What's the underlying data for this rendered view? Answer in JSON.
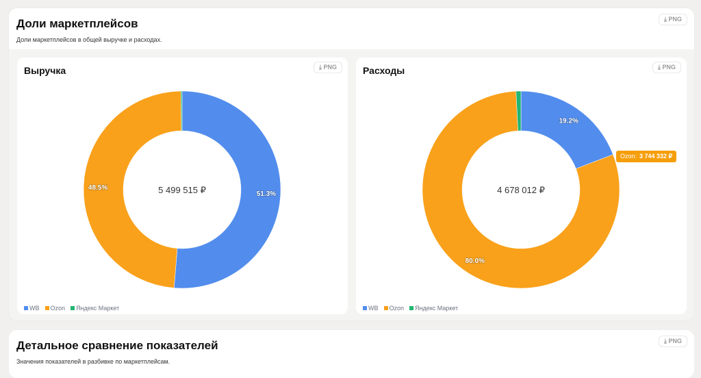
{
  "section": {
    "title": "Доли маркетплейсов",
    "subtitle": "Доли маркетплейсов в общей выручке и расходах.",
    "png_label": "PNG"
  },
  "legend": [
    {
      "name": "WB",
      "color": "#528ded"
    },
    {
      "name": "Ozon",
      "color": "#f9a11b"
    },
    {
      "name": "Яндекс Маркет",
      "color": "#22b573"
    }
  ],
  "chart_data": [
    {
      "type": "pie",
      "title": "Выручка",
      "center_label": "5 499 515 ₽",
      "categories": [
        "WB",
        "Ozon",
        "Яндекс Маркет"
      ],
      "values": [
        51.3,
        48.5,
        0.2
      ],
      "labels": [
        "51.3%",
        "48.5%",
        ""
      ],
      "png_label": "PNG"
    },
    {
      "type": "pie",
      "title": "Расходы",
      "center_label": "4 678 012 ₽",
      "categories": [
        "WB",
        "Ozon",
        "Яндекс Маркет"
      ],
      "values": [
        19.2,
        80.0,
        0.8
      ],
      "labels": [
        "19.2%",
        "80.0%",
        ""
      ],
      "png_label": "PNG",
      "tooltip": {
        "name": "Ozon:",
        "value": "3 744 332 ₽"
      }
    }
  ],
  "bottom": {
    "title": "Детальное сравнение показателей",
    "subtitle": "Значения показателей в разбивке по маркетплейсам.",
    "png_label": "PNG"
  }
}
